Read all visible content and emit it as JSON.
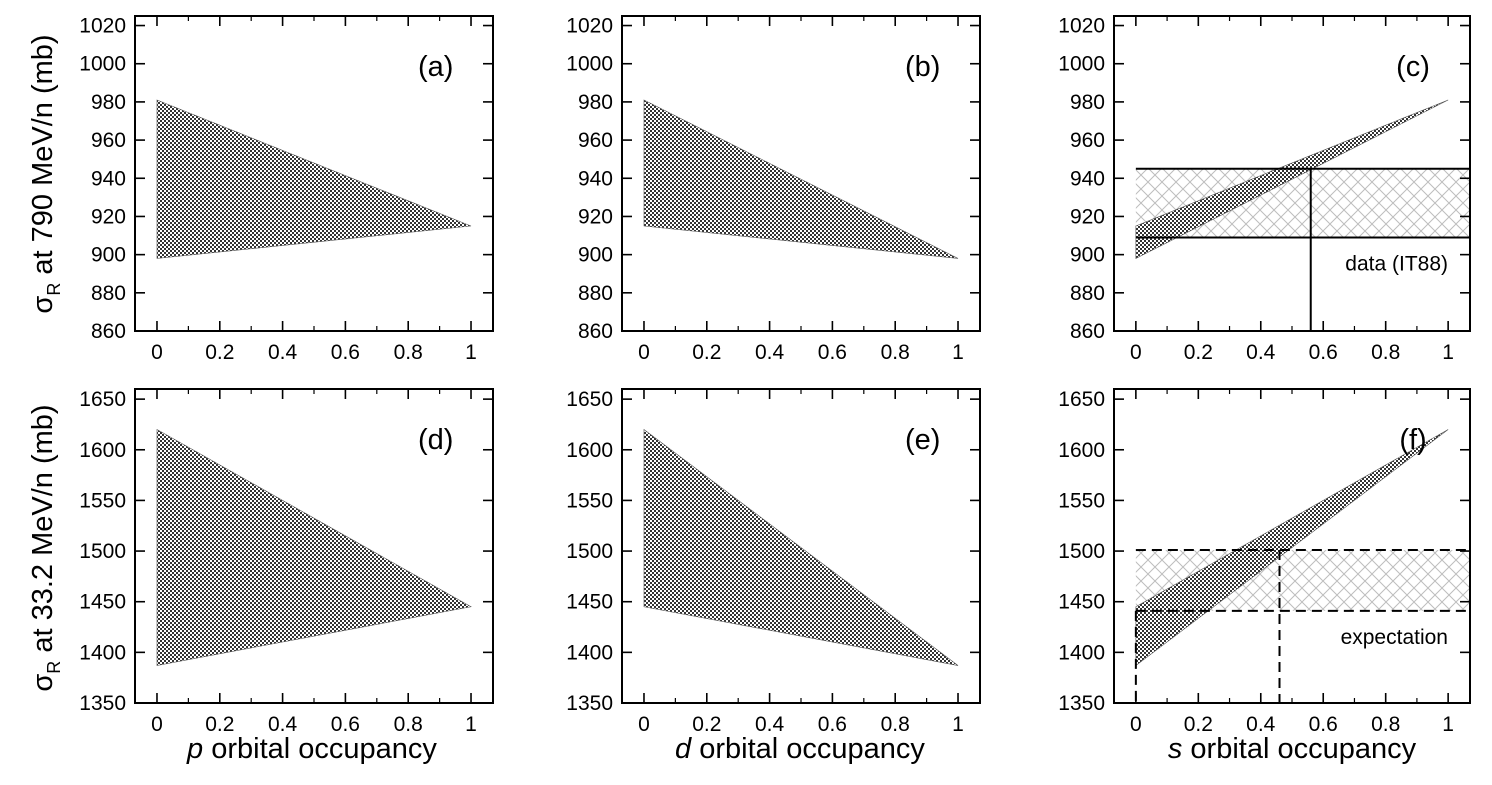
{
  "chart_data": {
    "type": "area",
    "rows": [
      {
        "ylabel_symbol": "σ",
        "ylabel_subscript": "R",
        "ylabel_rest": " at 790 MeV/n (mb)"
      },
      {
        "ylabel_symbol": "σ",
        "ylabel_subscript": "R",
        "ylabel_rest": " at 33.2 MeV/n (mb)"
      }
    ],
    "columns": [
      {
        "xlabel_italic": "p",
        "xlabel_rest": " orbital occupancy"
      },
      {
        "xlabel_italic": "d",
        "xlabel_rest": " orbital occupancy"
      },
      {
        "xlabel_italic": "s",
        "xlabel_rest": " orbital occupancy"
      }
    ],
    "panels": [
      {
        "label": "(a)",
        "xlim": [
          -0.07,
          1.07
        ],
        "ylim": [
          860,
          1025
        ],
        "xticks": [
          "0",
          "0.2",
          "0.4",
          "0.6",
          "0.8",
          "1"
        ],
        "yticks": [
          "860",
          "880",
          "900",
          "920",
          "940",
          "960",
          "980",
          "1000",
          "1020"
        ],
        "band": {
          "x": [
            0,
            1
          ],
          "upper": [
            981,
            915
          ],
          "lower": [
            898,
            915
          ]
        }
      },
      {
        "label": "(b)",
        "xlim": [
          -0.07,
          1.07
        ],
        "ylim": [
          860,
          1025
        ],
        "xticks": [
          "0",
          "0.2",
          "0.4",
          "0.6",
          "0.8",
          "1"
        ],
        "yticks": [
          "860",
          "880",
          "900",
          "920",
          "940",
          "960",
          "980",
          "1000",
          "1020"
        ],
        "band": {
          "x": [
            0,
            1
          ],
          "upper": [
            981,
            898
          ],
          "lower": [
            915,
            898
          ]
        }
      },
      {
        "label": "(c)",
        "xlim": [
          -0.07,
          1.07
        ],
        "ylim": [
          860,
          1025
        ],
        "xticks": [
          "0",
          "0.2",
          "0.4",
          "0.6",
          "0.8",
          "1"
        ],
        "yticks": [
          "860",
          "880",
          "900",
          "920",
          "940",
          "960",
          "980",
          "1000",
          "1020"
        ],
        "band": {
          "x": [
            0,
            1
          ],
          "upper": [
            915,
            981
          ],
          "lower": [
            898,
            981
          ]
        },
        "data_band": {
          "low": 909,
          "high": 945,
          "line_style": "solid"
        },
        "marker_x": 0.56,
        "annotation": "data (IT88)"
      },
      {
        "label": "(d)",
        "xlim": [
          -0.07,
          1.07
        ],
        "ylim": [
          1350,
          1660
        ],
        "xticks": [
          "0",
          "0.2",
          "0.4",
          "0.6",
          "0.8",
          "1"
        ],
        "yticks": [
          "1350",
          "1400",
          "1450",
          "1500",
          "1550",
          "1600",
          "1650"
        ],
        "band": {
          "x": [
            0,
            1
          ],
          "upper": [
            1620,
            1445
          ],
          "lower": [
            1387,
            1445
          ]
        }
      },
      {
        "label": "(e)",
        "xlim": [
          -0.07,
          1.07
        ],
        "ylim": [
          1350,
          1660
        ],
        "xticks": [
          "0",
          "0.2",
          "0.4",
          "0.6",
          "0.8",
          "1"
        ],
        "yticks": [
          "1350",
          "1400",
          "1450",
          "1500",
          "1550",
          "1600",
          "1650"
        ],
        "band": {
          "x": [
            0,
            1
          ],
          "upper": [
            1620,
            1387
          ],
          "lower": [
            1445,
            1387
          ]
        }
      },
      {
        "label": "(f)",
        "xlim": [
          -0.07,
          1.07
        ],
        "ylim": [
          1350,
          1660
        ],
        "xticks": [
          "0",
          "0.2",
          "0.4",
          "0.6",
          "0.8",
          "1"
        ],
        "yticks": [
          "1350",
          "1400",
          "1450",
          "1500",
          "1550",
          "1600",
          "1650"
        ],
        "band": {
          "x": [
            0,
            1
          ],
          "upper": [
            1445,
            1620
          ],
          "lower": [
            1387,
            1620
          ]
        },
        "data_band": {
          "low": 1441,
          "high": 1501,
          "line_style": "dashed"
        },
        "marker_x": 0.46,
        "annotation": "expectation"
      }
    ]
  }
}
